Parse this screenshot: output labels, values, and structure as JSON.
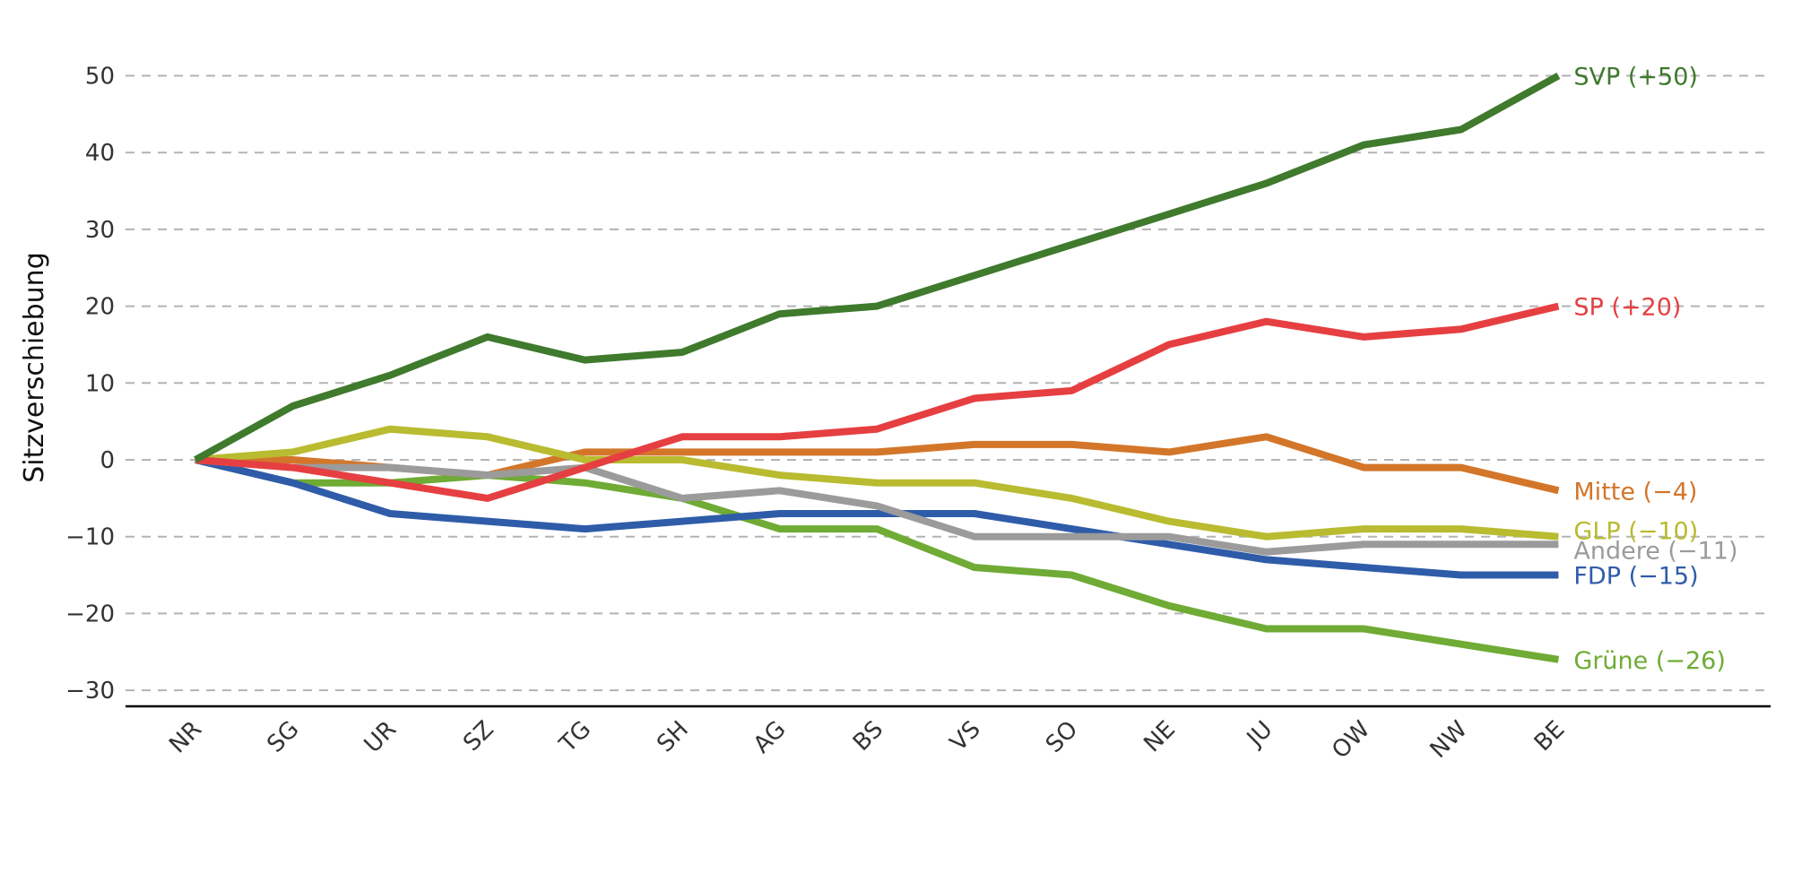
{
  "chart_data": {
    "type": "line",
    "title": "",
    "xlabel": "",
    "ylabel": "Sitzverschiebung",
    "categories": [
      "NR",
      "SG",
      "UR",
      "SZ",
      "TG",
      "SH",
      "AG",
      "BS",
      "VS",
      "SO",
      "NE",
      "JU",
      "OW",
      "NW",
      "BE"
    ],
    "ylim": [
      -32,
      54
    ],
    "yticks": [
      -30,
      -20,
      -10,
      0,
      10,
      20,
      30,
      40,
      50
    ],
    "ytick_labels": [
      "−30",
      "−20",
      "−10",
      "0",
      "10",
      "20",
      "30",
      "40",
      "50"
    ],
    "grid": "horizontal dashed",
    "legend": "end-of-line labels (right)",
    "series": [
      {
        "key": "grune",
        "label": "Grüne (−26)",
        "color": "#6fab35",
        "values": [
          0,
          -3,
          -3,
          -2,
          -3,
          -5,
          -9,
          -9,
          -14,
          -15,
          -19,
          -22,
          -22,
          -24,
          -26
        ]
      },
      {
        "key": "fdp",
        "label": "FDP (−15)",
        "color": "#2f5ca9",
        "values": [
          0,
          -3,
          -7,
          -8,
          -9,
          -8,
          -7,
          -7,
          -7,
          -9,
          -11,
          -13,
          -14,
          -15,
          -15
        ]
      },
      {
        "key": "mitte",
        "label": "Mitte (−4)",
        "color": "#d3762a",
        "values": [
          0,
          0,
          -1,
          -2,
          1,
          1,
          1,
          1,
          2,
          2,
          1,
          3,
          -1,
          -1,
          -4
        ]
      },
      {
        "key": "glp",
        "label": "GLP (−10)",
        "color": "#b9bb30",
        "values": [
          0,
          1,
          4,
          3,
          0,
          0,
          -2,
          -3,
          -3,
          -5,
          -8,
          -10,
          -9,
          -9,
          -10
        ]
      },
      {
        "key": "andere",
        "label": "Andere (−11)",
        "color": "#9b9b9b",
        "values": [
          0,
          -1,
          -1,
          -2,
          -1,
          -5,
          -4,
          -6,
          -10,
          -10,
          -10,
          -12,
          -11,
          -11,
          -11
        ]
      },
      {
        "key": "sp",
        "label": "SP (+20)",
        "color": "#e63f41",
        "values": [
          0,
          -1,
          -3,
          -5,
          -1,
          3,
          3,
          4,
          8,
          9,
          15,
          18,
          16,
          17,
          20
        ]
      },
      {
        "key": "svp",
        "label": "SVP (+50)",
        "color": "#3f7a2d",
        "values": [
          0,
          7,
          11,
          16,
          13,
          14,
          19,
          20,
          24,
          28,
          32,
          36,
          41,
          43,
          50
        ]
      }
    ]
  }
}
